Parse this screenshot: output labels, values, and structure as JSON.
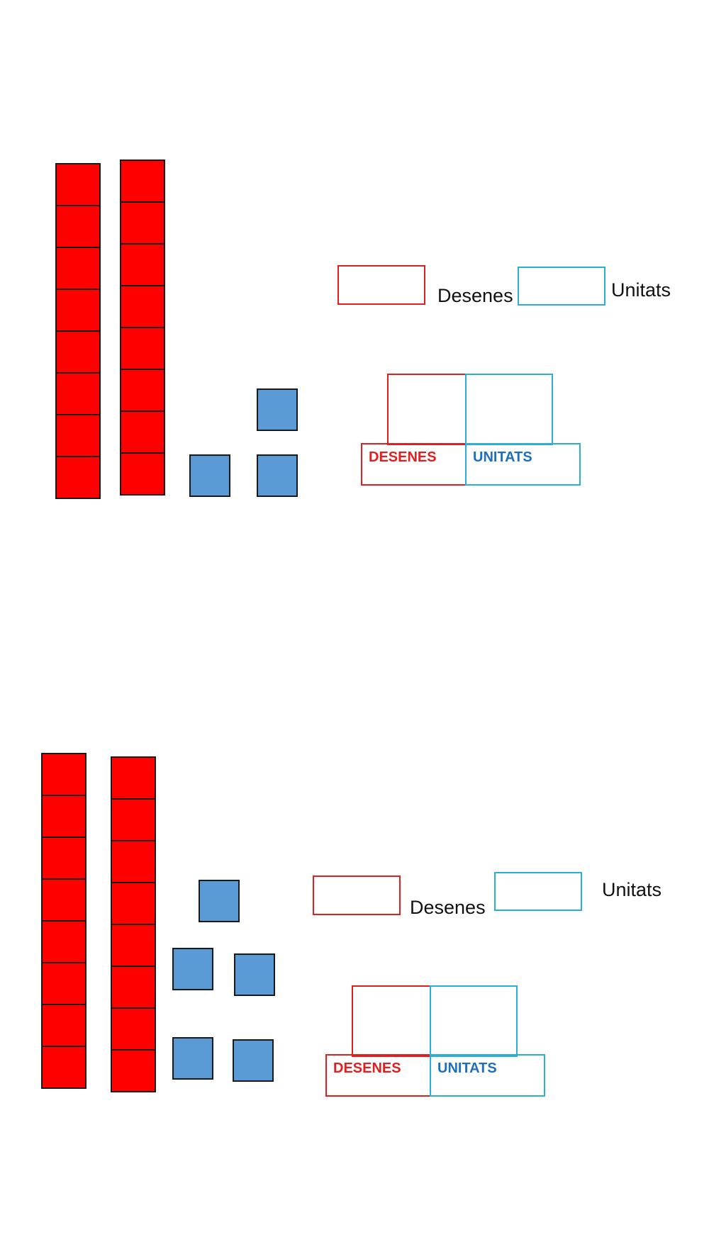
{
  "labels": {
    "desenes_word": "Desenes",
    "unitats_word": "Unitats",
    "desenes_caps": "DESENES",
    "unitats_caps": "UNITATS"
  },
  "colors": {
    "ten_rod": "#ff0000",
    "unit_cube": "#5b9bd5",
    "tens_accent": "#e02020",
    "units_accent": "#2ab0d8",
    "units_text": "#1f6fbf"
  },
  "exercises": [
    {
      "tens": 2,
      "units": 3
    },
    {
      "tens": 2,
      "units": 5
    }
  ]
}
